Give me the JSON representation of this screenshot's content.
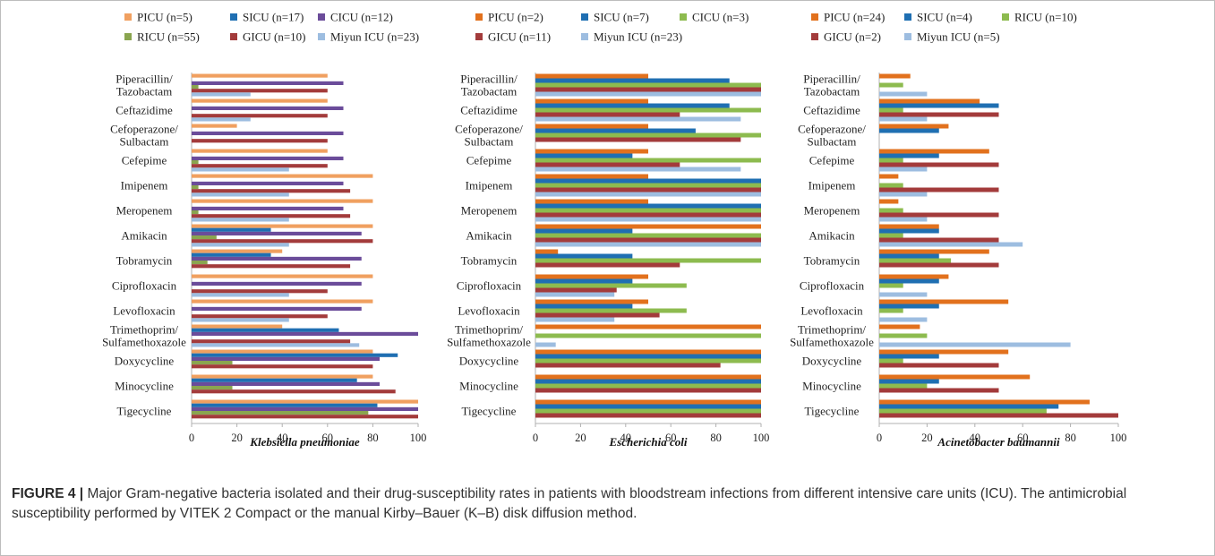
{
  "caption": {
    "label": "FIGURE 4 |",
    "text": "Major Gram-negative bacteria isolated and their drug-susceptibility rates in patients with bloodstream infections from different intensive care units (ICU). The antimicrobial susceptibility performed by VITEK 2 Compact or the manual Kirby–Bauer (K–B) disk diffusion method."
  },
  "colors": {
    "PICU": "#E2711D",
    "SICU": "#1F6FB2",
    "CICU_purple": "#6B4C9A",
    "CICU_green": "#8DBB4F",
    "RICU": "#8DBB4F",
    "GICU": "#A33B3B",
    "Miyun ICU": "#9DBDE0"
  },
  "chart_data": [
    {
      "type": "bar",
      "orientation": "horizontal",
      "xlabel": "Klebsiella pneumoniae",
      "xlim": [
        0,
        100
      ],
      "xticks": [
        "0",
        "20",
        "40",
        "60",
        "80",
        "100"
      ],
      "legend_position": "top",
      "categories": [
        "Piperacillin/ Tazobactam",
        "Ceftazidime",
        "Cefoperazone/ Sulbactam",
        "Cefepime",
        "Imipenem",
        "Meropenem",
        "Amikacin",
        "Tobramycin",
        "Ciprofloxacin",
        "Levofloxacin",
        "Trimethoprim/ Sulfamethoxazole",
        "Doxycycline",
        "Minocycline",
        "Tigecycline"
      ],
      "series": [
        {
          "name": "PICU (n=5)",
          "color": "#F0A060",
          "values": [
            60,
            60,
            20,
            60,
            80,
            80,
            80,
            40,
            80,
            80,
            40,
            80,
            80,
            100
          ]
        },
        {
          "name": "SICU (n=17)",
          "color": "#1F6FB2",
          "values": [
            null,
            null,
            null,
            null,
            null,
            null,
            35,
            35,
            null,
            null,
            65,
            91,
            73,
            82
          ]
        },
        {
          "name": "CICU (n=12)",
          "color": "#6B4C9A",
          "values": [
            67,
            67,
            67,
            67,
            67,
            67,
            75,
            75,
            75,
            75,
            100,
            83,
            83,
            100
          ]
        },
        {
          "name": "RICU (n=55)",
          "color": "#8AA54F",
          "values": [
            3,
            null,
            null,
            3,
            3,
            3,
            11,
            7,
            null,
            null,
            null,
            18,
            18,
            78
          ]
        },
        {
          "name": "GICU (n=10)",
          "color": "#A33B3B",
          "values": [
            60,
            60,
            60,
            60,
            70,
            70,
            80,
            70,
            60,
            60,
            70,
            80,
            90,
            100
          ]
        },
        {
          "name": "Miyun ICU (n=23)",
          "color": "#9DBDE0",
          "values": [
            26,
            26,
            null,
            43,
            43,
            43,
            43,
            null,
            43,
            43,
            74,
            null,
            null,
            null
          ]
        }
      ]
    },
    {
      "type": "bar",
      "orientation": "horizontal",
      "xlabel": "Escherichia coli",
      "xlim": [
        0,
        100
      ],
      "xticks": [
        "0",
        "20",
        "40",
        "60",
        "80",
        "100"
      ],
      "legend_position": "top",
      "categories": [
        "Piperacillin/ Tazobactam",
        "Ceftazidime",
        "Cefoperazone/ Sulbactam",
        "Cefepime",
        "Imipenem",
        "Meropenem",
        "Amikacin",
        "Tobramycin",
        "Ciprofloxacin",
        "Levofloxacin",
        "Trimethoprim/ Sulfamethoxazole",
        "Doxycycline",
        "Minocycline",
        "Tigecycline"
      ],
      "series": [
        {
          "name": "PICU (n=2)",
          "color": "#E2711D",
          "values": [
            50,
            50,
            50,
            50,
            50,
            50,
            100,
            10,
            50,
            50,
            100,
            100,
            100,
            100
          ]
        },
        {
          "name": "SICU (n=7)",
          "color": "#1F6FB2",
          "values": [
            86,
            86,
            71,
            43,
            100,
            100,
            43,
            43,
            43,
            43,
            null,
            100,
            100,
            100
          ]
        },
        {
          "name": "CICU (n=3)",
          "color": "#8DBB4F",
          "values": [
            100,
            100,
            100,
            100,
            100,
            100,
            100,
            100,
            67,
            67,
            100,
            100,
            100,
            100
          ]
        },
        {
          "name": "GICU (n=11)",
          "color": "#A33B3B",
          "values": [
            100,
            64,
            91,
            64,
            100,
            100,
            100,
            64,
            36,
            55,
            null,
            82,
            100,
            100
          ]
        },
        {
          "name": "Miyun ICU (n=23)",
          "color": "#9DBDE0",
          "values": [
            100,
            91,
            null,
            91,
            100,
            100,
            100,
            null,
            35,
            35,
            9,
            null,
            null,
            null
          ]
        }
      ]
    },
    {
      "type": "bar",
      "orientation": "horizontal",
      "xlabel": "Acinetobacter baumannii",
      "xlim": [
        0,
        100
      ],
      "xticks": [
        "0",
        "20",
        "40",
        "60",
        "80",
        "100"
      ],
      "legend_position": "top",
      "categories": [
        "Piperacillin/ Tazobactam",
        "Ceftazidime",
        "Cefoperazone/ Sulbactam",
        "Cefepime",
        "Imipenem",
        "Meropenem",
        "Amikacin",
        "Tobramycin",
        "Ciprofloxacin",
        "Levofloxacin",
        "Trimethoprim/ Sulfamethoxazole",
        "Doxycycline",
        "Minocycline",
        "Tigecycline"
      ],
      "series": [
        {
          "name": "PICU (n=24)",
          "color": "#E2711D",
          "values": [
            13,
            42,
            29,
            46,
            8,
            8,
            25,
            46,
            29,
            54,
            17,
            54,
            63,
            88
          ]
        },
        {
          "name": "SICU (n=4)",
          "color": "#1F6FB2",
          "values": [
            null,
            50,
            25,
            25,
            null,
            null,
            25,
            25,
            25,
            25,
            null,
            25,
            25,
            75
          ]
        },
        {
          "name": "RICU (n=10)",
          "color": "#8DBB4F",
          "values": [
            10,
            10,
            null,
            10,
            10,
            10,
            10,
            30,
            10,
            10,
            20,
            10,
            20,
            70
          ]
        },
        {
          "name": "GICU (n=2)",
          "color": "#A33B3B",
          "values": [
            null,
            50,
            null,
            50,
            50,
            50,
            50,
            50,
            null,
            null,
            null,
            50,
            50,
            100
          ]
        },
        {
          "name": "Miyun ICU (n=5)",
          "color": "#9DBDE0",
          "values": [
            20,
            20,
            null,
            20,
            20,
            20,
            60,
            null,
            20,
            20,
            80,
            null,
            null,
            null
          ]
        }
      ]
    }
  ]
}
